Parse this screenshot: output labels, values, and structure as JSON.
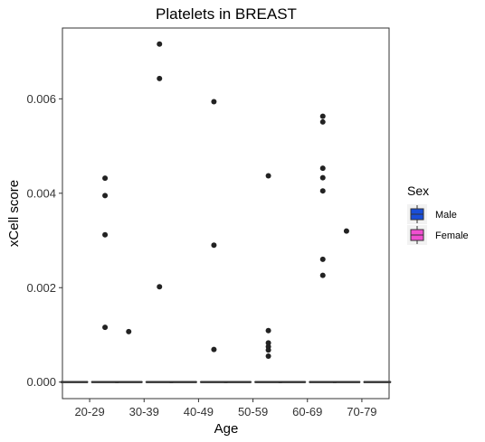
{
  "chart_data": {
    "type": "box",
    "title": "Platelets in BREAST",
    "xlabel": "Age",
    "ylabel": "xCell score",
    "categories": [
      "20-29",
      "30-39",
      "40-49",
      "50-59",
      "60-69",
      "70-79"
    ],
    "y_ticks": [
      0.0,
      0.002,
      0.004,
      0.006
    ],
    "y_tick_labels": [
      "0.000",
      "0.002",
      "0.004",
      "0.006"
    ],
    "ylim": [
      -0.00035,
      0.0075
    ],
    "grid": false,
    "legend": {
      "title": "Sex",
      "position": "right",
      "entries": [
        {
          "label": "Male",
          "color": "#1a4ed8"
        },
        {
          "label": "Female",
          "color": "#f04fd0"
        }
      ]
    },
    "series": [
      {
        "name": "Male",
        "color": "#1a4ed8",
        "boxes": [
          {
            "category": "20-29",
            "q1": 0,
            "median": 0,
            "q3": 0,
            "whisker_low": 0,
            "whisker_high": 0,
            "outliers": []
          },
          {
            "category": "30-39",
            "q1": 0,
            "median": 0,
            "q3": 0,
            "whisker_low": 0,
            "whisker_high": 0,
            "outliers": [
              0.00107
            ]
          },
          {
            "category": "40-49",
            "q1": 0,
            "median": 0,
            "q3": 0,
            "whisker_low": 0,
            "whisker_high": 0,
            "outliers": []
          },
          {
            "category": "50-59",
            "q1": 0,
            "median": 0,
            "q3": 0,
            "whisker_low": 0,
            "whisker_high": 0,
            "outliers": []
          },
          {
            "category": "60-69",
            "q1": 0,
            "median": 0,
            "q3": 0,
            "whisker_low": 0,
            "whisker_high": 0,
            "outliers": []
          },
          {
            "category": "70-79",
            "q1": 0,
            "median": 0,
            "q3": 0,
            "whisker_low": 0,
            "whisker_high": 0,
            "outliers": [
              0.0032
            ]
          }
        ]
      },
      {
        "name": "Female",
        "color": "#f04fd0",
        "boxes": [
          {
            "category": "20-29",
            "q1": 0,
            "median": 0,
            "q3": 0,
            "whisker_low": 0,
            "whisker_high": 0,
            "outliers": [
              0.00432,
              0.00395,
              0.00312,
              0.00116
            ]
          },
          {
            "category": "30-39",
            "q1": 0,
            "median": 0,
            "q3": 0,
            "whisker_low": 0,
            "whisker_high": 0,
            "outliers": [
              0.00716,
              0.00643,
              0.00202
            ]
          },
          {
            "category": "40-49",
            "q1": 0,
            "median": 0,
            "q3": 0,
            "whisker_low": 0,
            "whisker_high": 0,
            "outliers": [
              0.00594,
              0.0029,
              0.00069
            ]
          },
          {
            "category": "50-59",
            "q1": 0,
            "median": 0,
            "q3": 0,
            "whisker_low": 0,
            "whisker_high": 0,
            "outliers": [
              0.00437,
              0.00109,
              0.00083,
              0.00075,
              0.00068,
              0.00055
            ]
          },
          {
            "category": "60-69",
            "q1": 0,
            "median": 0,
            "q3": 0,
            "whisker_low": 0,
            "whisker_high": 0,
            "outliers": [
              0.00563,
              0.00551,
              0.00453,
              0.00433,
              0.00405,
              0.0026,
              0.00226
            ]
          },
          {
            "category": "70-79",
            "q1": 0,
            "median": 0,
            "q3": 0,
            "whisker_low": 0,
            "whisker_high": 0,
            "outliers": []
          }
        ]
      }
    ]
  }
}
